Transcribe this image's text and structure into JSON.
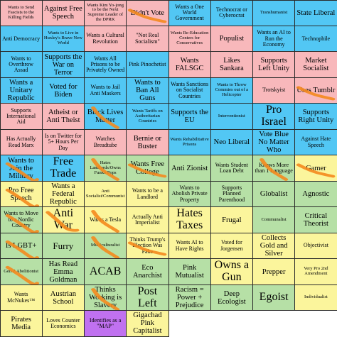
{
  "cells": [
    {
      "text": "Wants to Send Fascists to the Killing Fields",
      "q": "red",
      "s": "xs"
    },
    {
      "text": "Against Free Speech",
      "q": "red",
      "s": "md"
    },
    {
      "text": "Wants Kim Yo-jong to be the Next Supreme Leader of the DPRK",
      "q": "red",
      "s": "xs"
    },
    {
      "text": "Didn't Vote",
      "q": "red",
      "s": "md",
      "marked": true
    },
    {
      "text": "Wants a One World Government",
      "q": "blue",
      "s": "sm"
    },
    {
      "text": "Technocrat or Cyberocrat",
      "q": "blue",
      "s": "sm"
    },
    {
      "text": "Transhumanist",
      "q": "blue",
      "s": "xs"
    },
    {
      "text": "State Liberal",
      "q": "blue",
      "s": "md"
    },
    {
      "text": "Anti Democracy",
      "q": "blue",
      "s": "sm"
    },
    {
      "text": "Wants to Live in Huxley's Brave New World",
      "q": "blue",
      "s": "xs"
    },
    {
      "text": "Wants a Cultural Revolution",
      "q": "red",
      "s": "sm"
    },
    {
      "text": "\"Not Real Socialism\"",
      "q": "red",
      "s": "sm"
    },
    {
      "text": "Wants Re-Education Centers for Conservatives",
      "q": "red",
      "s": "xs"
    },
    {
      "text": "Populist",
      "q": "red",
      "s": "md"
    },
    {
      "text": "Wants an AI to Run the Economy",
      "q": "blue",
      "s": "sm"
    },
    {
      "text": "Technophile",
      "q": "blue",
      "s": "sm"
    },
    {
      "text": "Wants to Overthrow Assad",
      "q": "blue",
      "s": "sm"
    },
    {
      "text": "Supports the War on Terror",
      "q": "blue",
      "s": "md"
    },
    {
      "text": "Wants All Prisons to be Privately Owned",
      "q": "blue",
      "s": "sm"
    },
    {
      "text": "Pink Pinochetist",
      "q": "blue",
      "s": "sm"
    },
    {
      "text": "Wants FALSGC",
      "q": "red",
      "s": "md"
    },
    {
      "text": "Likes Sankara",
      "q": "red",
      "s": "md"
    },
    {
      "text": "Supports Left Unity",
      "q": "red",
      "s": "md"
    },
    {
      "text": "Market Socialist",
      "q": "red",
      "s": "md"
    },
    {
      "text": "Wants a Unitary Republic",
      "q": "blue",
      "s": "md"
    },
    {
      "text": "Voted for Biden",
      "q": "blue",
      "s": "md"
    },
    {
      "text": "Wants to Jail Anti Maskers",
      "q": "blue",
      "s": "sm"
    },
    {
      "text": "Wants to Ban All Guns",
      "q": "blue",
      "s": "md"
    },
    {
      "text": "Wants Sanctions on Socialist Countries",
      "q": "blue",
      "s": "sm"
    },
    {
      "text": "Wants to Throw Commies out of a Helicopter",
      "q": "blue",
      "s": "xs"
    },
    {
      "text": "Trotskyist",
      "q": "red",
      "s": "sm"
    },
    {
      "text": "Uses Tumblr",
      "q": "red",
      "s": "md",
      "marked": true
    },
    {
      "text": "Supports International Aid",
      "q": "red",
      "s": "sm"
    },
    {
      "text": "Atheist or Anti Theist",
      "q": "red",
      "s": "md"
    },
    {
      "text": "Black Lives Matter",
      "q": "blue",
      "s": "md",
      "marked": true
    },
    {
      "text": "Wants Tariffs on Authoritarian Countries",
      "q": "blue",
      "s": "xs"
    },
    {
      "text": "Supports the EU",
      "q": "blue",
      "s": "md"
    },
    {
      "text": "Interventionist",
      "q": "blue",
      "s": "xs"
    },
    {
      "text": "Pro Israel",
      "q": "blue",
      "s": "xl"
    },
    {
      "text": "Supports Right Unity",
      "q": "blue",
      "s": "md"
    },
    {
      "text": "Has Actually Read Marx",
      "q": "red",
      "s": "sm"
    },
    {
      "text": "Is on Twitter for 5+ Hours Per Day",
      "q": "red",
      "s": "sm"
    },
    {
      "text": "Watches Breadtube",
      "q": "red",
      "s": "sm"
    },
    {
      "text": "Bernie or Buster",
      "q": "red",
      "s": "md"
    },
    {
      "text": "Wants Rehabilitative Prisons",
      "q": "blue",
      "s": "xs"
    },
    {
      "text": "Neo Liberal",
      "q": "blue",
      "s": "md"
    },
    {
      "text": "Vote Blue No Matter Who",
      "q": "blue",
      "s": "md"
    },
    {
      "text": "Against Hate Speech",
      "q": "blue",
      "s": "sm"
    },
    {
      "text": "Wants to Join the Military",
      "q": "blue",
      "s": "md",
      "marked": true
    },
    {
      "text": "Free Trade",
      "q": "blue",
      "s": "xl"
    },
    {
      "text": "Hates Landlords/Owns Funko Pops",
      "q": "green",
      "s": "xs",
      "marked": true
    },
    {
      "text": "Wants Free College",
      "q": "green",
      "s": "md",
      "marked": true
    },
    {
      "text": "Anti Zionist",
      "q": "green",
      "s": "md"
    },
    {
      "text": "Wants Student Loan Debt",
      "q": "green",
      "s": "sm"
    },
    {
      "text": "Knows More than 1 Language",
      "q": "green",
      "s": "sm",
      "marked": true
    },
    {
      "text": "Gamer",
      "q": "yellow",
      "s": "md",
      "marked": true
    },
    {
      "text": "Pro Free Speech",
      "q": "yellow",
      "s": "md",
      "marked": true
    },
    {
      "text": "Wants a Federal Republic",
      "q": "yellow",
      "s": "md"
    },
    {
      "text": "Anti Socialist/Communist",
      "q": "yellow",
      "s": "xs"
    },
    {
      "text": "Wants to be a Landlord",
      "q": "yellow",
      "s": "sm"
    },
    {
      "text": "Wants to Abolish Private Property",
      "q": "green",
      "s": "sm"
    },
    {
      "text": "Supports Planned Parenthood",
      "q": "green",
      "s": "sm"
    },
    {
      "text": "Globalist",
      "q": "green",
      "s": "md"
    },
    {
      "text": "Agnostic",
      "q": "green",
      "s": "md"
    },
    {
      "text": "Wants to Move to a Nordic Country",
      "q": "green",
      "s": "sm",
      "marked": true
    },
    {
      "text": "Anti War",
      "q": "yellow",
      "s": "xl",
      "marked": true
    },
    {
      "text": "Wants a Tesla",
      "q": "yellow",
      "s": "sm",
      "marked": true
    },
    {
      "text": "Actually Anti Imperialist",
      "q": "yellow",
      "s": "sm"
    },
    {
      "text": "Hates Taxes",
      "q": "yellow",
      "s": "xl"
    },
    {
      "text": "Frugal",
      "q": "yellow",
      "s": "md"
    },
    {
      "text": "Communalist",
      "q": "green",
      "s": "xs"
    },
    {
      "text": "Critical Theorist",
      "q": "green",
      "s": "md"
    },
    {
      "text": "Is LGBT+",
      "q": "green",
      "s": "md",
      "marked": true
    },
    {
      "text": "Furry",
      "q": "green",
      "s": "lg"
    },
    {
      "text": "Multiculturalist",
      "q": "green",
      "s": "xs",
      "marked": true
    },
    {
      "text": "Thinks Trump's Election Was Fake",
      "q": "yellow",
      "s": "sm",
      "marked": true
    },
    {
      "text": "Wants AI to Have Rights",
      "q": "yellow",
      "s": "sm"
    },
    {
      "text": "Voted for Jorgensen",
      "q": "yellow",
      "s": "sm"
    },
    {
      "text": "Collects Gold and Silver",
      "q": "yellow",
      "s": "md"
    },
    {
      "text": "Objectivist",
      "q": "yellow",
      "s": "sm"
    },
    {
      "text": "Gen Z Abolitionist",
      "q": "green",
      "s": "xs",
      "marked": true
    },
    {
      "text": "Has Read Emma Goldman",
      "q": "green",
      "s": "md"
    },
    {
      "text": "ACAB",
      "q": "green",
      "s": "xl"
    },
    {
      "text": "Eco Anarchist",
      "q": "green",
      "s": "md"
    },
    {
      "text": "Pink Mutualist",
      "q": "green",
      "s": "md"
    },
    {
      "text": "Owns a Gun",
      "q": "yellow",
      "s": "xl"
    },
    {
      "text": "Prepper",
      "q": "yellow",
      "s": "md"
    },
    {
      "text": "Very Pro 2nd Amendment",
      "q": "yellow",
      "s": "xs"
    },
    {
      "text": "Wants McNukes™",
      "q": "yellow",
      "s": "sm"
    },
    {
      "text": "Austrian School",
      "q": "yellow",
      "s": "md"
    },
    {
      "text": "Thinks Working is Slavery",
      "q": "green",
      "s": "md",
      "marked": true
    },
    {
      "text": "Post Left",
      "q": "green",
      "s": "xl"
    },
    {
      "text": "Racism = Power + Prejudice",
      "q": "green",
      "s": "md"
    },
    {
      "text": "Deep Ecologist",
      "q": "green",
      "s": "md"
    },
    {
      "text": "Egoist",
      "q": "green",
      "s": "xl"
    },
    {
      "text": "Individualist",
      "q": "yellow",
      "s": "xs"
    },
    {
      "text": "Pirates Media",
      "q": "yellow",
      "s": "md"
    },
    {
      "text": "Loves Counter Economics",
      "q": "yellow",
      "s": "sm"
    },
    {
      "text": "Identifies as a \"MAP\"",
      "q": "purple",
      "s": "sm"
    },
    {
      "text": "Gigachad Pink Capitalist",
      "q": "yellow",
      "s": "md"
    }
  ],
  "colors": {
    "red": "#f8b8bb",
    "blue": "#52c7f4",
    "green": "#b6e0a6",
    "yellow": "#fbf59c",
    "purple": "#c071f0",
    "mark": "#f4891e"
  }
}
